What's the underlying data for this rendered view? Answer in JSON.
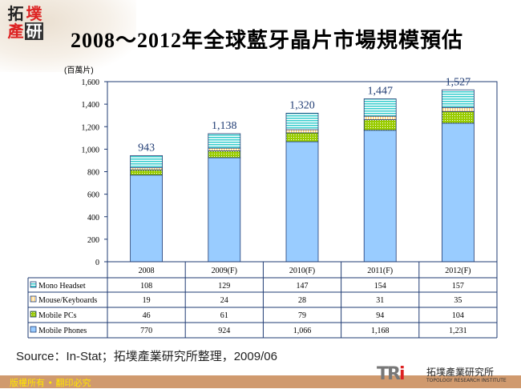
{
  "logo": {
    "chars": [
      "拓",
      "墣",
      "產",
      "研"
    ]
  },
  "title": "2008～2012年全球藍牙晶片市場規模預估",
  "chart_data": {
    "type": "bar",
    "stacked": true,
    "title": "2008～2012年全球藍牙晶片市場規模預估",
    "ylabel": "(百萬片)",
    "ylim": [
      0,
      1600
    ],
    "yticks": [
      "0",
      "200",
      "400",
      "600",
      "800",
      "1,000",
      "1,200",
      "1,400",
      "1,600"
    ],
    "categories": [
      "2008",
      "2009(F)",
      "2010(F)",
      "2011(F)",
      "2012(F)"
    ],
    "series": [
      {
        "name": "Mobile Phones",
        "values": [
          770,
          924,
          1066,
          1168,
          1231
        ],
        "labels": [
          "770",
          "924",
          "1,066",
          "1,168",
          "1,231"
        ],
        "color": "#99ccff"
      },
      {
        "name": "Mobile PCs",
        "values": [
          46,
          61,
          79,
          94,
          104
        ],
        "labels": [
          "46",
          "61",
          "79",
          "94",
          "104"
        ],
        "color": "#99cc00"
      },
      {
        "name": "Mouse/Keyboards",
        "values": [
          19,
          24,
          28,
          31,
          35
        ],
        "labels": [
          "19",
          "24",
          "28",
          "31",
          "35"
        ],
        "color": "#ffcc66"
      },
      {
        "name": "Mono Headset",
        "values": [
          108,
          129,
          147,
          154,
          157
        ],
        "labels": [
          "108",
          "129",
          "147",
          "154",
          "157"
        ],
        "color": "#33cccc"
      }
    ],
    "totals": [
      "943",
      "1,138",
      "1,320",
      "1,447",
      "1,527"
    ],
    "legend": "data-table",
    "grid": false
  },
  "source": "Source：In-Stat；拓墣產業研究所整理，2009/06",
  "footer": {
    "copyright": "版權所有 • 翻印必究",
    "org_cn": "拓墣產業研究所",
    "org_en": "TOPOLOGY RESEARCH INSTITUTE",
    "org_mark": "TRi"
  }
}
